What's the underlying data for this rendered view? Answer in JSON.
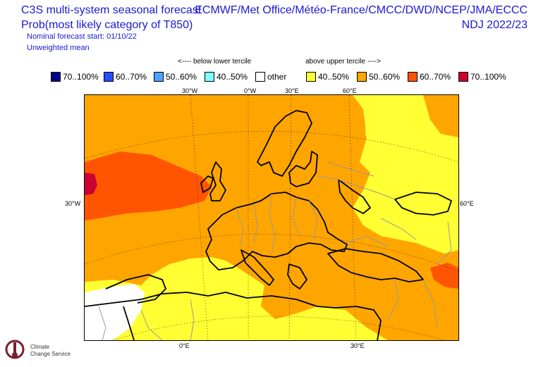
{
  "header": {
    "title_line1": "C3S multi-system seasonal forecast",
    "title_line2": "Prob(most likely category of T850)",
    "nominal_start": "Nominal forecast start: 01/10/22",
    "mean_type": "Unweighted mean",
    "providers": "ECMWF/Met Office/Météo-France/CMCC/DWD/NCEP/JMA/ECCC",
    "season": "NDJ 2022/23"
  },
  "legend": {
    "below_label": "<---- below lower tercile",
    "above_label": "above upper tercile ---->",
    "items": [
      {
        "label": "70..100%",
        "color": "#00008c"
      },
      {
        "label": "60..70%",
        "color": "#2a4cff"
      },
      {
        "label": "50..60%",
        "color": "#4da3ff"
      },
      {
        "label": "40..50%",
        "color": "#7fffff"
      },
      {
        "label": "other",
        "color": "#ffffff"
      },
      {
        "label": "40..50%",
        "color": "#ffff33"
      },
      {
        "label": "50..60%",
        "color": "#ffa500"
      },
      {
        "label": "60..70%",
        "color": "#ff5500"
      },
      {
        "label": "70..100%",
        "color": "#cc0033"
      }
    ]
  },
  "axes": {
    "top": [
      "30°W",
      "0°W",
      "30°E",
      "60°E"
    ],
    "left": "30°W",
    "right": "60°E",
    "bottom": [
      "0°E",
      "30°E"
    ]
  },
  "logo": {
    "line1": "Climate",
    "line2": "Change Service"
  }
}
